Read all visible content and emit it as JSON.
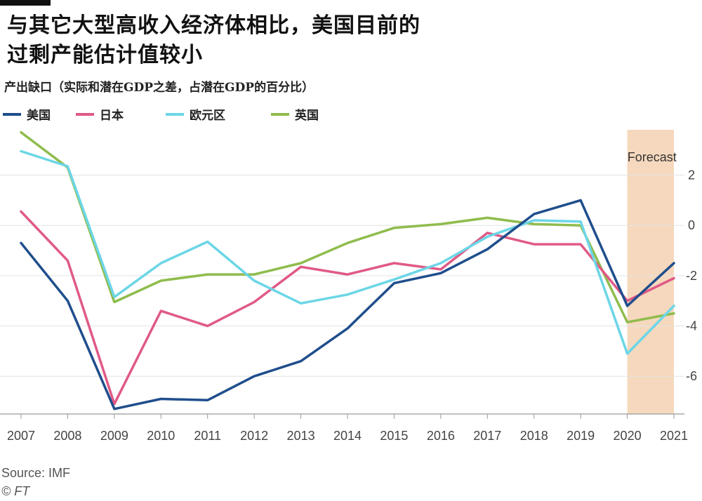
{
  "header": {
    "title_line1": "与其它大型高收入经济体相比，美国目前的",
    "title_line2": "过剩产能估计值较小",
    "subtitle": "产出缺口（实际和潜在GDP之差，占潜在GDP的百分比）"
  },
  "footer": {
    "source": "Source: IMF",
    "credit": "© FT"
  },
  "chart_data": {
    "type": "line",
    "x": [
      2007,
      2008,
      2009,
      2010,
      2011,
      2012,
      2013,
      2014,
      2015,
      2016,
      2017,
      2018,
      2019,
      2020,
      2021
    ],
    "xtick_labels": [
      "2007",
      "2008",
      "2009",
      "2010",
      "2011",
      "2012",
      "2013",
      "2014",
      "2015",
      "2016",
      "2017",
      "2018",
      "2019",
      "2020",
      "2021"
    ],
    "ylim": [
      -7.5,
      3.8
    ],
    "yticks": [
      2,
      0,
      -2,
      -4,
      -6
    ],
    "ytick_labels": [
      "2",
      "0",
      "-2",
      "-4",
      "-6"
    ],
    "grid": true,
    "legend_position": "top-left",
    "forecast": {
      "label": "Forecast",
      "from": 2020,
      "to": 2021,
      "color": "#f5d8bd"
    },
    "series": [
      {
        "name": "美国",
        "color": "#1f4e8c",
        "values": [
          -0.7,
          -3.0,
          -7.3,
          -6.9,
          -6.95,
          -6.0,
          -5.4,
          -4.1,
          -2.3,
          -1.9,
          -0.95,
          0.45,
          1.0,
          -3.2,
          -1.5
        ]
      },
      {
        "name": "日本",
        "color": "#e05a86",
        "values": [
          0.55,
          -1.4,
          -7.1,
          -3.4,
          -4.0,
          -3.05,
          -1.65,
          -1.95,
          -1.5,
          -1.75,
          -0.3,
          -0.75,
          -0.75,
          -3.0,
          -2.1
        ]
      },
      {
        "name": "欧元区",
        "color": "#6cd6e6",
        "values": [
          2.95,
          2.35,
          -2.85,
          -1.5,
          -0.65,
          -2.2,
          -3.1,
          -2.75,
          -2.15,
          -1.5,
          -0.45,
          0.2,
          0.15,
          -5.1,
          -3.2
        ]
      },
      {
        "name": "英国",
        "color": "#8fbc4d",
        "values": [
          3.7,
          2.3,
          -3.05,
          -2.2,
          -1.95,
          -1.95,
          -1.5,
          -0.7,
          -0.1,
          0.05,
          0.3,
          0.05,
          0.0,
          -3.85,
          -3.5
        ]
      }
    ]
  }
}
